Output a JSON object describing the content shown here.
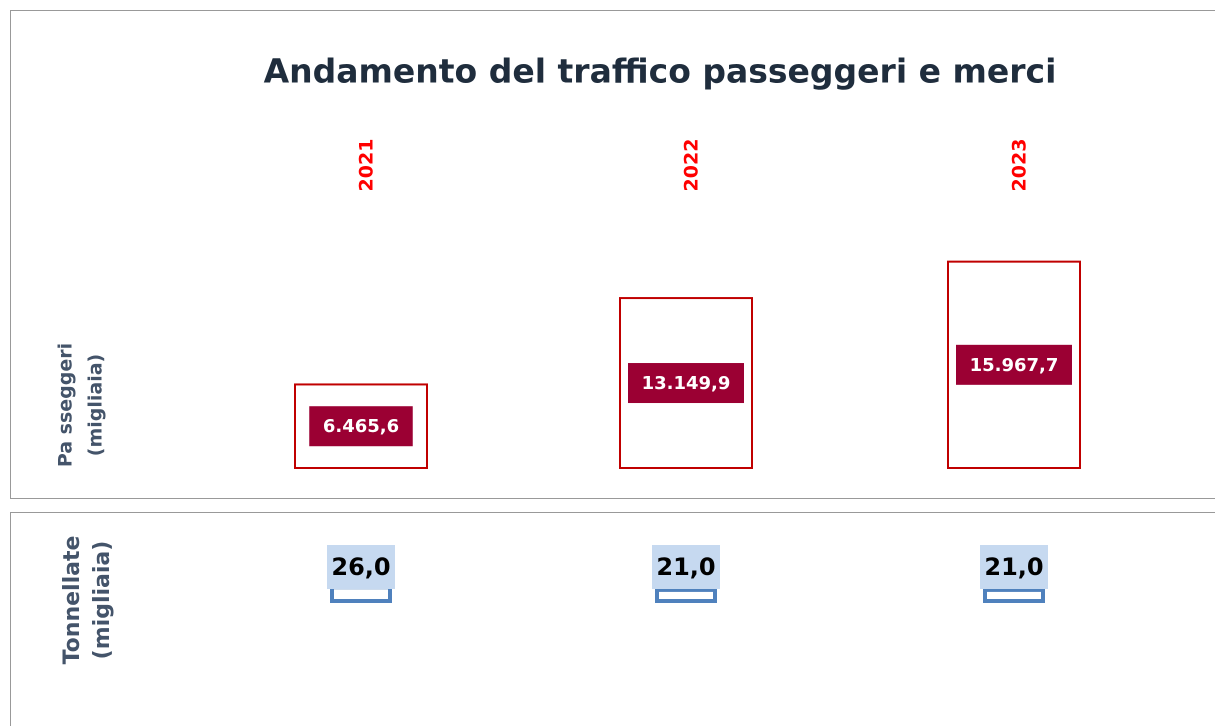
{
  "chart_data": [
    {
      "type": "bar",
      "title": "Andamento del traffico passeggeri e merci",
      "categories": [
        "2021",
        "2022",
        "2023"
      ],
      "ylabel": [
        "Pa sseggeri",
        "(migliaia)"
      ],
      "values": [
        6465.6,
        13149.9,
        15967.7
      ],
      "value_labels": [
        "6.465,6",
        "13.149,9",
        "15.967,7"
      ],
      "color": "#c00000",
      "label_color": "#9b0033",
      "ylim": [
        0,
        26000
      ]
    },
    {
      "type": "bar",
      "ylabel": [
        "Tonnellate",
        "(migliaia)"
      ],
      "values": [
        26.0,
        21.0,
        21.0
      ],
      "value_labels": [
        "26,0",
        "21,0",
        "21,0"
      ],
      "color": "#4f81bd",
      "label_color": "#c6d9f0",
      "ylim": [
        0,
        180
      ]
    }
  ]
}
